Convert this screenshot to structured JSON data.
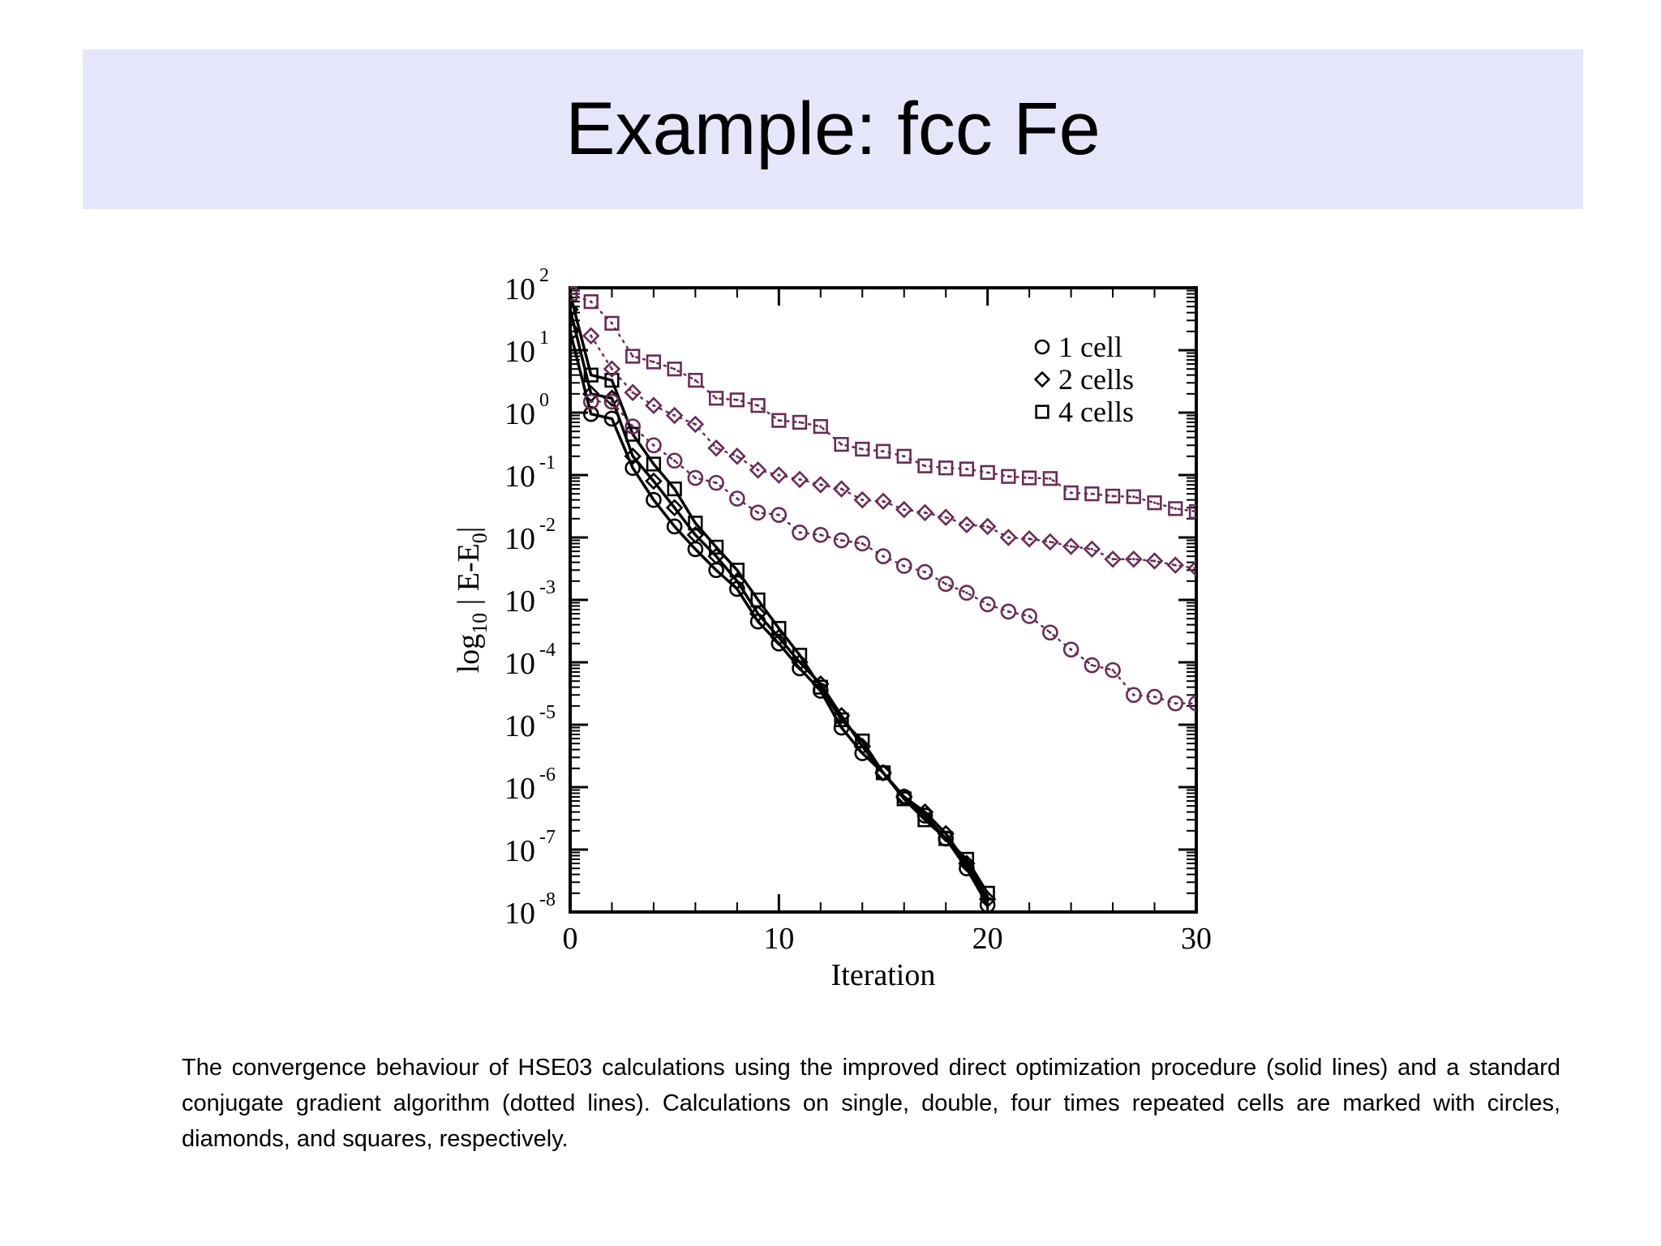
{
  "slide": {
    "title": "Example: fcc Fe",
    "caption": "The convergence behaviour of HSE03 calculations using the improved direct optimization procedure (solid lines) and a standard conjugate gradient algorithm (dotted lines). Calculations on single, double, four times repeated cells are marked with circles, diamonds, and squares, respectively."
  },
  "colors": {
    "solid": "#000000",
    "dotted": "#6b2a55",
    "title_band": "#e6e6fa"
  },
  "chart_data": {
    "type": "scatter",
    "xlabel": "Iteration",
    "ylabel": "log",
    "ylabel_sub": "10",
    "ylabel_tail": "| E-E",
    "ylabel_sub2": "0",
    "ylabel_end": "|",
    "x_scale": "linear",
    "y_scale": "log",
    "xlim": [
      0,
      30
    ],
    "ylim": [
      1e-08,
      100
    ],
    "x_ticks": [
      0,
      10,
      20,
      30
    ],
    "y_ticks": [
      {
        "base": "10",
        "exp": "2",
        "value": 100
      },
      {
        "base": "10",
        "exp": "1",
        "value": 10
      },
      {
        "base": "10",
        "exp": "0",
        "value": 1
      },
      {
        "base": "10",
        "exp": "-1",
        "value": 0.1
      },
      {
        "base": "10",
        "exp": "-2",
        "value": 0.01
      },
      {
        "base": "10",
        "exp": "-3",
        "value": 0.001
      },
      {
        "base": "10",
        "exp": "-4",
        "value": 0.0001
      },
      {
        "base": "10",
        "exp": "-5",
        "value": 1e-05
      },
      {
        "base": "10",
        "exp": "-6",
        "value": 1e-06
      },
      {
        "base": "10",
        "exp": "-7",
        "value": 1e-07
      },
      {
        "base": "10",
        "exp": "-8",
        "value": 1e-08
      }
    ],
    "legend_position": "top-right",
    "legend": [
      {
        "marker": "circle",
        "label": "1 cell"
      },
      {
        "marker": "diamond",
        "label": "2 cells"
      },
      {
        "marker": "square",
        "label": "4 cells"
      }
    ],
    "series": [
      {
        "marker": "circle",
        "style": "solid",
        "x": [
          0,
          1,
          2,
          3,
          4,
          5,
          6,
          7,
          8,
          9,
          10,
          11,
          12,
          13,
          14,
          15,
          16,
          17,
          18,
          19,
          20
        ],
        "y": [
          20,
          0.95,
          0.8,
          0.13,
          0.04,
          0.015,
          0.0065,
          0.003,
          0.0015,
          0.00045,
          0.0002,
          8e-05,
          3.5e-05,
          9e-06,
          3.5e-06,
          1.7e-06,
          7e-07,
          3.5e-07,
          1.5e-07,
          5e-08,
          1.3e-08
        ]
      },
      {
        "marker": "diamond",
        "style": "solid",
        "x": [
          0,
          1,
          2,
          3,
          4,
          5,
          6,
          7,
          8,
          9,
          10,
          11,
          12,
          13,
          14,
          15,
          16,
          17,
          18,
          19,
          20
        ],
        "y": [
          45,
          2,
          1.7,
          0.2,
          0.08,
          0.03,
          0.011,
          0.005,
          0.002,
          0.0006,
          0.00025,
          0.0001,
          4.5e-05,
          1.4e-05,
          4.5e-06,
          1.7e-06,
          7e-07,
          4e-07,
          1.8e-07,
          6e-08,
          1.6e-08
        ]
      },
      {
        "marker": "square",
        "style": "solid",
        "x": [
          0,
          1,
          2,
          3,
          4,
          5,
          6,
          7,
          8,
          9,
          10,
          11,
          12,
          13,
          14,
          15,
          16,
          17,
          18,
          19,
          20
        ],
        "y": [
          80,
          4,
          3.3,
          0.45,
          0.15,
          0.06,
          0.017,
          0.007,
          0.003,
          0.001,
          0.00035,
          0.00013,
          4e-05,
          1.2e-05,
          5.5e-06,
          1.7e-06,
          6.5e-07,
          3e-07,
          1.5e-07,
          7e-08,
          2e-08
        ]
      },
      {
        "marker": "circle",
        "style": "dotted",
        "x": [
          1,
          2,
          3,
          4,
          5,
          6,
          7,
          8,
          9,
          10,
          11,
          12,
          13,
          14,
          15,
          16,
          17,
          18,
          19,
          20,
          21,
          22,
          23,
          24,
          25,
          26,
          27,
          28,
          29,
          30
        ],
        "y": [
          1.5,
          1.5,
          0.6,
          0.3,
          0.17,
          0.09,
          0.075,
          0.042,
          0.025,
          0.023,
          0.012,
          0.011,
          0.009,
          0.008,
          0.005,
          0.0035,
          0.0028,
          0.0018,
          0.0013,
          0.00085,
          0.00065,
          0.00055,
          0.0003,
          0.00016,
          9e-05,
          7.5e-05,
          3e-05,
          2.8e-05,
          2.2e-05,
          2.2e-05
        ]
      },
      {
        "marker": "diamond",
        "style": "dotted",
        "x": [
          1,
          2,
          3,
          4,
          5,
          6,
          7,
          8,
          9,
          10,
          11,
          12,
          13,
          14,
          15,
          16,
          17,
          18,
          19,
          20,
          21,
          22,
          23,
          24,
          25,
          26,
          27,
          28,
          29,
          30
        ],
        "y": [
          17,
          5,
          2.1,
          1.3,
          0.9,
          0.65,
          0.27,
          0.2,
          0.12,
          0.1,
          0.085,
          0.07,
          0.06,
          0.04,
          0.038,
          0.028,
          0.025,
          0.021,
          0.016,
          0.015,
          0.01,
          0.0095,
          0.0085,
          0.0072,
          0.0065,
          0.0045,
          0.0045,
          0.0042,
          0.0036,
          0.0032
        ]
      },
      {
        "marker": "square",
        "style": "dotted",
        "x": [
          0,
          1,
          2,
          3,
          4,
          5,
          6,
          7,
          8,
          9,
          10,
          11,
          12,
          13,
          14,
          15,
          16,
          17,
          18,
          19,
          20,
          21,
          22,
          23,
          24,
          25,
          26,
          27,
          28,
          29,
          30
        ],
        "y": [
          80,
          60,
          27,
          8,
          6.5,
          5,
          3.3,
          1.7,
          1.6,
          1.3,
          0.75,
          0.7,
          0.6,
          0.31,
          0.26,
          0.24,
          0.2,
          0.14,
          0.13,
          0.125,
          0.11,
          0.095,
          0.09,
          0.088,
          0.052,
          0.05,
          0.046,
          0.045,
          0.036,
          0.029,
          0.026
        ]
      }
    ]
  }
}
